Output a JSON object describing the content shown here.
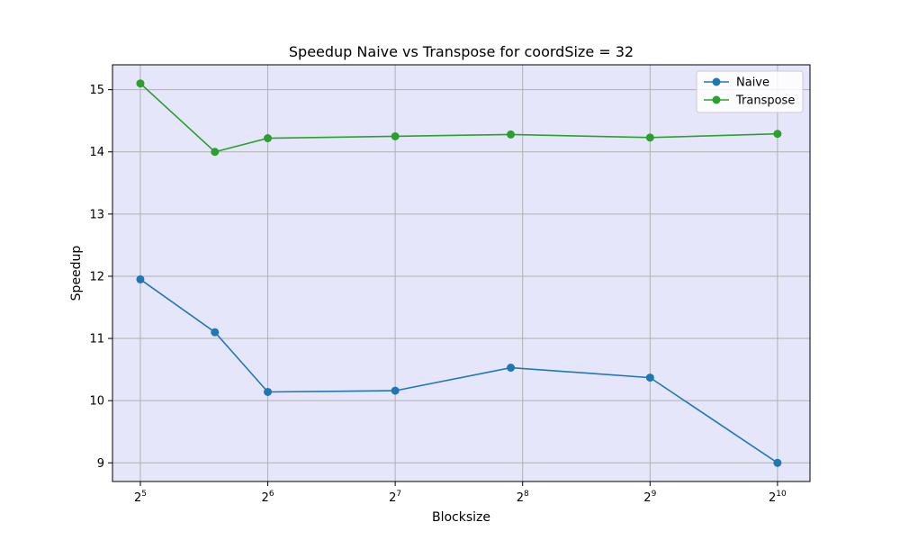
{
  "chart_data": {
    "type": "line",
    "title": "Speedup Naive vs Transpose for coordSize = 32",
    "xlabel": "Blocksize",
    "ylabel": "Speedup",
    "x_scale": "log2",
    "xlim": [
      27.5,
      1222
    ],
    "ylim": [
      8.7,
      15.4
    ],
    "grid": true,
    "legend_position": "top-right",
    "background_color": "#e6e6fa",
    "x_ticks": [
      {
        "value": 32,
        "base": "2",
        "exp": "5"
      },
      {
        "value": 64,
        "base": "2",
        "exp": "6"
      },
      {
        "value": 128,
        "base": "2",
        "exp": "7"
      },
      {
        "value": 256,
        "base": "2",
        "exp": "8"
      },
      {
        "value": 512,
        "base": "2",
        "exp": "9"
      },
      {
        "value": 1024,
        "base": "2",
        "exp": "10"
      }
    ],
    "y_ticks": [
      {
        "value": 9,
        "label": "9"
      },
      {
        "value": 10,
        "label": "10"
      },
      {
        "value": 11,
        "label": "11"
      },
      {
        "value": 12,
        "label": "12"
      },
      {
        "value": 13,
        "label": "13"
      },
      {
        "value": 14,
        "label": "14"
      },
      {
        "value": 15,
        "label": "15"
      }
    ],
    "x": [
      32,
      48,
      64,
      128,
      240,
      512,
      1024
    ],
    "series": [
      {
        "name": "Naive",
        "color": "#1f77b4",
        "values": [
          11.95,
          11.1,
          10.14,
          10.16,
          10.53,
          10.37,
          9.0
        ]
      },
      {
        "name": "Transpose",
        "color": "#2ca02c",
        "values": [
          15.1,
          14.0,
          14.22,
          14.25,
          14.28,
          14.23,
          14.29
        ]
      }
    ]
  }
}
